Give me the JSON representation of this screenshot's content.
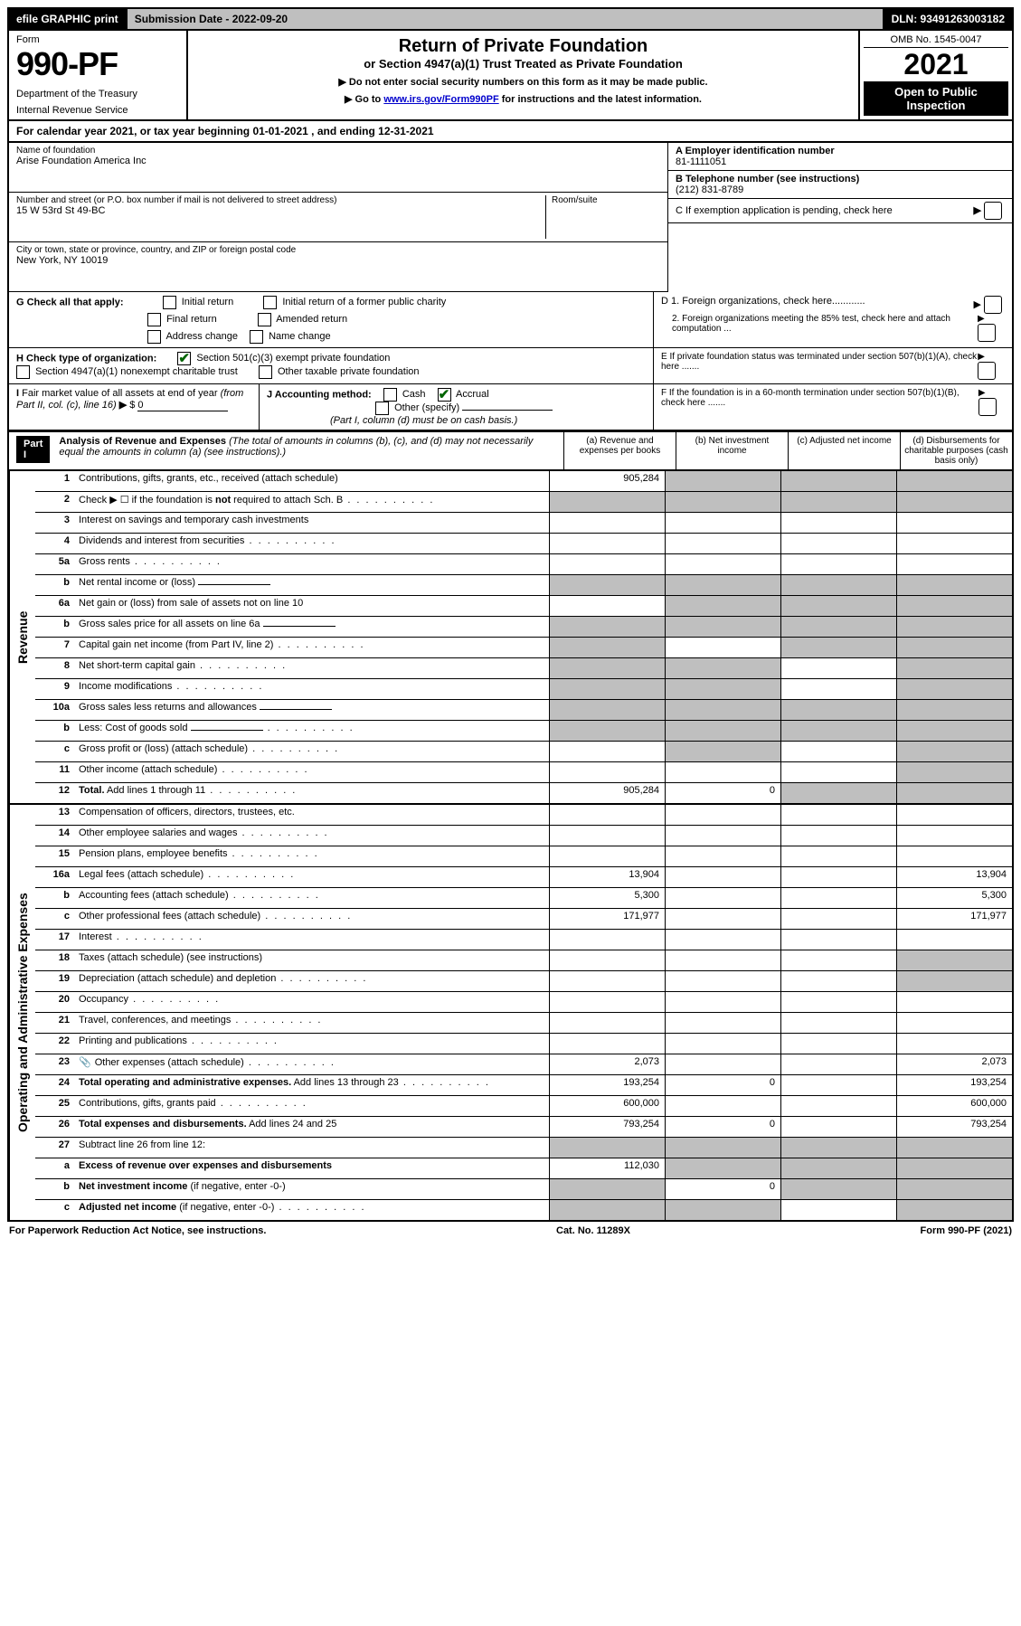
{
  "topbar": {
    "efile": "efile GRAPHIC print",
    "submission": "Submission Date - 2022-09-20",
    "dln": "DLN: 93491263003182"
  },
  "header": {
    "form_label": "Form",
    "form_number": "990-PF",
    "dept1": "Department of the Treasury",
    "dept2": "Internal Revenue Service",
    "title": "Return of Private Foundation",
    "subtitle": "or Section 4947(a)(1) Trust Treated as Private Foundation",
    "note1": "▶ Do not enter social security numbers on this form as it may be made public.",
    "note2_pre": "▶ Go to ",
    "note2_link": "www.irs.gov/Form990PF",
    "note2_post": " for instructions and the latest information.",
    "omb": "OMB No. 1545-0047",
    "year": "2021",
    "open_public": "Open to Public Inspection"
  },
  "cal_year": "For calendar year 2021, or tax year beginning 01-01-2021             , and ending 12-31-2021",
  "entity": {
    "name_label": "Name of foundation",
    "name": "Arise Foundation America Inc",
    "addr_label": "Number and street (or P.O. box number if mail is not delivered to street address)",
    "addr": "15 W 53rd St 49-BC",
    "room_label": "Room/suite",
    "city_label": "City or town, state or province, country, and ZIP or foreign postal code",
    "city": "New York, NY  10019",
    "ein_label": "A Employer identification number",
    "ein": "81-1111051",
    "phone_label": "B Telephone number (see instructions)",
    "phone": "(212) 831-8789",
    "c_label": "C If exemption application is pending, check here"
  },
  "checks": {
    "g_label": "G Check all that apply:",
    "g1": "Initial return",
    "g2": "Initial return of a former public charity",
    "g3": "Final return",
    "g4": "Amended return",
    "g5": "Address change",
    "g6": "Name change",
    "h_label": "H Check type of organization:",
    "h1": "Section 501(c)(3) exempt private foundation",
    "h2": "Section 4947(a)(1) nonexempt charitable trust",
    "h3": "Other taxable private foundation",
    "i_label": "I Fair market value of all assets at end of year (from Part II, col. (c), line 16) ▶ $",
    "i_val": "0",
    "j_label": "J Accounting method:",
    "j1": "Cash",
    "j2": "Accrual",
    "j3": "Other (specify)",
    "j_note": "(Part I, column (d) must be on cash basis.)",
    "d1": "D 1. Foreign organizations, check here............",
    "d2": "2. Foreign organizations meeting the 85% test, check here and attach computation ...",
    "e": "E  If private foundation status was terminated under section 507(b)(1)(A), check here .......",
    "f": "F  If the foundation is in a 60-month termination under section 507(b)(1)(B), check here ......."
  },
  "part1": {
    "label": "Part I",
    "title": "Analysis of Revenue and Expenses",
    "title_note": "(The total of amounts in columns (b), (c), and (d) may not necessarily equal the amounts in column (a) (see instructions).)",
    "col_a": "(a)   Revenue and expenses per books",
    "col_b": "(b)   Net investment income",
    "col_c": "(c)   Adjusted net income",
    "col_d": "(d)  Disbursements for charitable purposes (cash basis only)"
  },
  "side_labels": {
    "revenue": "Revenue",
    "expenses": "Operating and Administrative Expenses"
  },
  "rows": [
    {
      "n": "1",
      "d": "Contributions, gifts, grants, etc., received (attach schedule)",
      "a": "905,284",
      "sb": true,
      "sc": true,
      "sd": true
    },
    {
      "n": "2",
      "d": "Check ▶ ☐ if the foundation is <b>not</b> required to attach Sch. B",
      "dots": true,
      "sa": true,
      "sb": true,
      "sc": true,
      "sd": true
    },
    {
      "n": "3",
      "d": "Interest on savings and temporary cash investments"
    },
    {
      "n": "4",
      "d": "Dividends and interest from securities",
      "dots": true
    },
    {
      "n": "5a",
      "d": "Gross rents",
      "dots": true
    },
    {
      "n": "b",
      "d": "Net rental income or (loss)",
      "inline": true,
      "sa": true,
      "sb": true,
      "sc": true,
      "sd": true
    },
    {
      "n": "6a",
      "d": "Net gain or (loss) from sale of assets not on line 10",
      "sb": true,
      "sc": true,
      "sd": true
    },
    {
      "n": "b",
      "d": "Gross sales price for all assets on line 6a",
      "inline": true,
      "sa": true,
      "sb": true,
      "sc": true,
      "sd": true
    },
    {
      "n": "7",
      "d": "Capital gain net income (from Part IV, line 2)",
      "dots": true,
      "sa": true,
      "sc": true,
      "sd": true
    },
    {
      "n": "8",
      "d": "Net short-term capital gain",
      "dots": true,
      "sa": true,
      "sb": true,
      "sd": true
    },
    {
      "n": "9",
      "d": "Income modifications",
      "dots": true,
      "sa": true,
      "sb": true,
      "sd": true
    },
    {
      "n": "10a",
      "d": "Gross sales less returns and allowances",
      "inline": true,
      "sa": true,
      "sb": true,
      "sc": true,
      "sd": true
    },
    {
      "n": "b",
      "d": "Less: Cost of goods sold",
      "dots": true,
      "inline": true,
      "sa": true,
      "sb": true,
      "sc": true,
      "sd": true
    },
    {
      "n": "c",
      "d": "Gross profit or (loss) (attach schedule)",
      "dots": true,
      "sb": true,
      "sd": true
    },
    {
      "n": "11",
      "d": "Other income (attach schedule)",
      "dots": true,
      "sd": true
    },
    {
      "n": "12",
      "d": "<b>Total.</b> Add lines 1 through 11",
      "dots": true,
      "a": "905,284",
      "b": "0",
      "sc": true,
      "sd": true
    }
  ],
  "exp_rows": [
    {
      "n": "13",
      "d": "Compensation of officers, directors, trustees, etc."
    },
    {
      "n": "14",
      "d": "Other employee salaries and wages",
      "dots": true
    },
    {
      "n": "15",
      "d": "Pension plans, employee benefits",
      "dots": true
    },
    {
      "n": "16a",
      "d": "Legal fees (attach schedule)",
      "dots": true,
      "a": "13,904",
      "dv": "13,904"
    },
    {
      "n": "b",
      "d": "Accounting fees (attach schedule)",
      "dots": true,
      "a": "5,300",
      "dv": "5,300"
    },
    {
      "n": "c",
      "d": "Other professional fees (attach schedule)",
      "dots": true,
      "a": "171,977",
      "dv": "171,977"
    },
    {
      "n": "17",
      "d": "Interest",
      "dots": true
    },
    {
      "n": "18",
      "d": "Taxes (attach schedule) (see instructions)",
      "sd": true
    },
    {
      "n": "19",
      "d": "Depreciation (attach schedule) and depletion",
      "dots": true,
      "sd": true
    },
    {
      "n": "20",
      "d": "Occupancy",
      "dots": true
    },
    {
      "n": "21",
      "d": "Travel, conferences, and meetings",
      "dots": true
    },
    {
      "n": "22",
      "d": "Printing and publications",
      "dots": true
    },
    {
      "n": "23",
      "d": "Other expenses (attach schedule)",
      "dots": true,
      "icon": true,
      "a": "2,073",
      "dv": "2,073"
    },
    {
      "n": "24",
      "d": "<b>Total operating and administrative expenses.</b> Add lines 13 through 23",
      "dots": true,
      "a": "193,254",
      "b": "0",
      "dv": "193,254"
    },
    {
      "n": "25",
      "d": "Contributions, gifts, grants paid",
      "dots": true,
      "a": "600,000",
      "dv": "600,000"
    },
    {
      "n": "26",
      "d": "<b>Total expenses and disbursements.</b> Add lines 24 and 25",
      "a": "793,254",
      "b": "0",
      "dv": "793,254"
    },
    {
      "n": "27",
      "d": "Subtract line 26 from line 12:",
      "sa": true,
      "sb": true,
      "sc": true,
      "sd": true
    },
    {
      "n": "a",
      "d": "<b>Excess of revenue over expenses and disbursements</b>",
      "a": "112,030",
      "sb": true,
      "sc": true,
      "sd": true
    },
    {
      "n": "b",
      "d": "<b>Net investment income</b> (if negative, enter -0-)",
      "sa": true,
      "b": "0",
      "sc": true,
      "sd": true
    },
    {
      "n": "c",
      "d": "<b>Adjusted net income</b> (if negative, enter -0-)",
      "dots": true,
      "sa": true,
      "sb": true,
      "sd": true
    }
  ],
  "footer": {
    "left": "For Paperwork Reduction Act Notice, see instructions.",
    "center": "Cat. No. 11289X",
    "right": "Form 990-PF (2021)"
  }
}
